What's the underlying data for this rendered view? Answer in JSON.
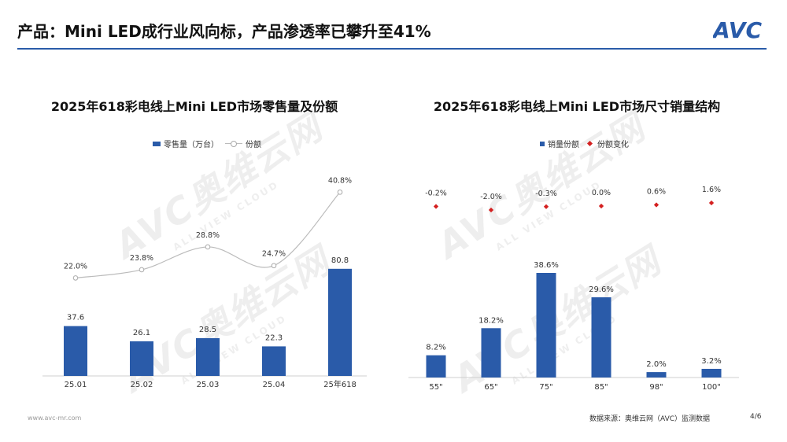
{
  "header": {
    "title": "产品：Mini LED成行业风向标，产品渗透率已攀升至41%",
    "logo_text": "AVC",
    "rule_color": "#2a5ba9"
  },
  "watermark": {
    "main": "AVC奥维云网",
    "sub": "ALL VIEW CLOUD"
  },
  "colors": {
    "bar": "#2a5ba9",
    "line": "#bbbbbb",
    "diamond": "#d42020"
  },
  "footer": {
    "url": "www.avc-mr.com",
    "source": "数据来源：奥维云网（AVC）监测数据",
    "page": "4/6"
  },
  "chart_data": [
    {
      "type": "bar",
      "title": "2025年618彩电线上Mini LED市场零售量及份额",
      "legend": [
        "零售量（万台）",
        "份额"
      ],
      "legend_placement": "top-left",
      "categories": [
        "25.01",
        "25.02",
        "25.03",
        "25.04",
        "25年618"
      ],
      "series": [
        {
          "name": "零售量（万台）",
          "type": "bar",
          "values": [
            37.6,
            26.1,
            28.5,
            22.3,
            80.8
          ],
          "labels": [
            "37.6",
            "26.1",
            "28.5",
            "22.3",
            "80.8"
          ]
        },
        {
          "name": "份额",
          "type": "line",
          "values": [
            22.0,
            23.8,
            28.8,
            24.7,
            40.8
          ],
          "labels": [
            "22.0%",
            "23.8%",
            "28.8%",
            "24.7%",
            "40.8%"
          ]
        }
      ],
      "ylim_bar": [
        0,
        140
      ],
      "ylim_line": [
        0,
        45
      ],
      "grid": false
    },
    {
      "type": "bar",
      "title": "2025年618彩电线上Mini LED市场尺寸销量结构",
      "legend": [
        "销量份额",
        "份额变化"
      ],
      "legend_placement": "top-left",
      "categories": [
        "55\"",
        "65\"",
        "75\"",
        "85\"",
        "98\"",
        "100\""
      ],
      "series": [
        {
          "name": "销量份额",
          "type": "bar",
          "values": [
            8.2,
            18.2,
            38.6,
            29.6,
            2.0,
            3.2
          ],
          "labels": [
            "8.2%",
            "18.2%",
            "38.6%",
            "29.6%",
            "2.0%",
            "3.2%"
          ]
        },
        {
          "name": "份额变化",
          "type": "scatter",
          "values": [
            -0.2,
            -2.0,
            -0.3,
            0.0,
            0.6,
            1.6
          ],
          "labels": [
            "-0.2%",
            "-2.0%",
            "-0.3%",
            "0.0%",
            "0.6%",
            "1.6%"
          ]
        }
      ],
      "ylim_bar": [
        0,
        50
      ],
      "grid": false
    }
  ]
}
